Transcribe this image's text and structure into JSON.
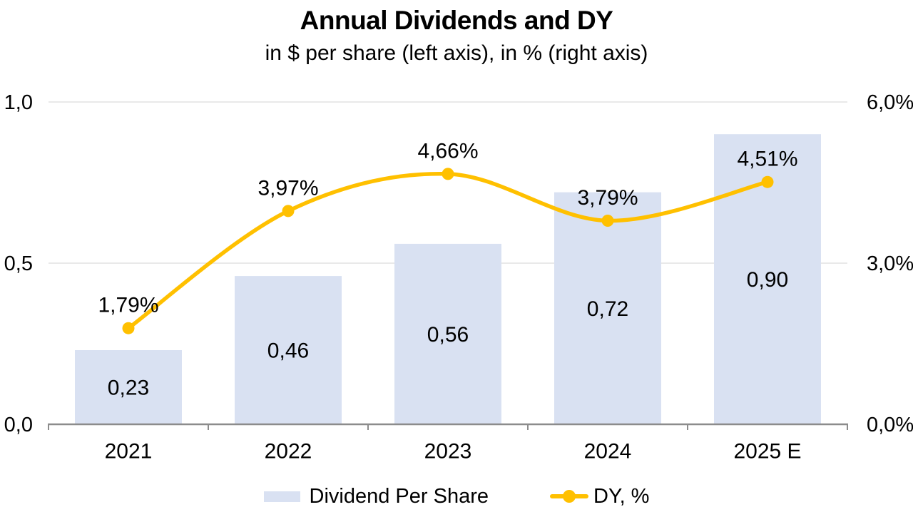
{
  "title": "Annual Dividends and DY",
  "subtitle": "in $ per share (left axis), in % (right axis)",
  "chart_data": {
    "type": "bar+line combo",
    "categories": [
      "2021",
      "2022",
      "2023",
      "2024",
      "2025 E"
    ],
    "series": [
      {
        "name": "Dividend Per Share",
        "type": "bar",
        "axis": "left",
        "values": [
          0.23,
          0.46,
          0.56,
          0.72,
          0.9
        ],
        "labels": [
          "0,23",
          "0,46",
          "0,56",
          "0,72",
          "0,90"
        ],
        "color": "#d9e1f2"
      },
      {
        "name": "DY, %",
        "type": "line",
        "axis": "right",
        "values": [
          1.79,
          3.97,
          4.66,
          3.79,
          4.51
        ],
        "labels": [
          "1,79%",
          "3,97%",
          "4,66%",
          "3,79%",
          "4,51%"
        ],
        "color": "#ffc000"
      }
    ],
    "left_axis": {
      "min": 0,
      "max": 1.0,
      "values": [
        0,
        0.5,
        1.0
      ],
      "ticks": [
        "0,0",
        "0,5",
        "1,0"
      ]
    },
    "right_axis": {
      "min": 0,
      "max": 6.0,
      "values": [
        0,
        3.0,
        6.0
      ],
      "ticks": [
        "0,0%",
        "3,0%",
        "6,0%"
      ]
    },
    "legend_position": "bottom",
    "grid": "horizontal-major",
    "colors": {
      "gridline": "#e2e2e2",
      "axis_line": "#8c8c8c",
      "text": "#000000",
      "background": "#ffffff"
    }
  }
}
